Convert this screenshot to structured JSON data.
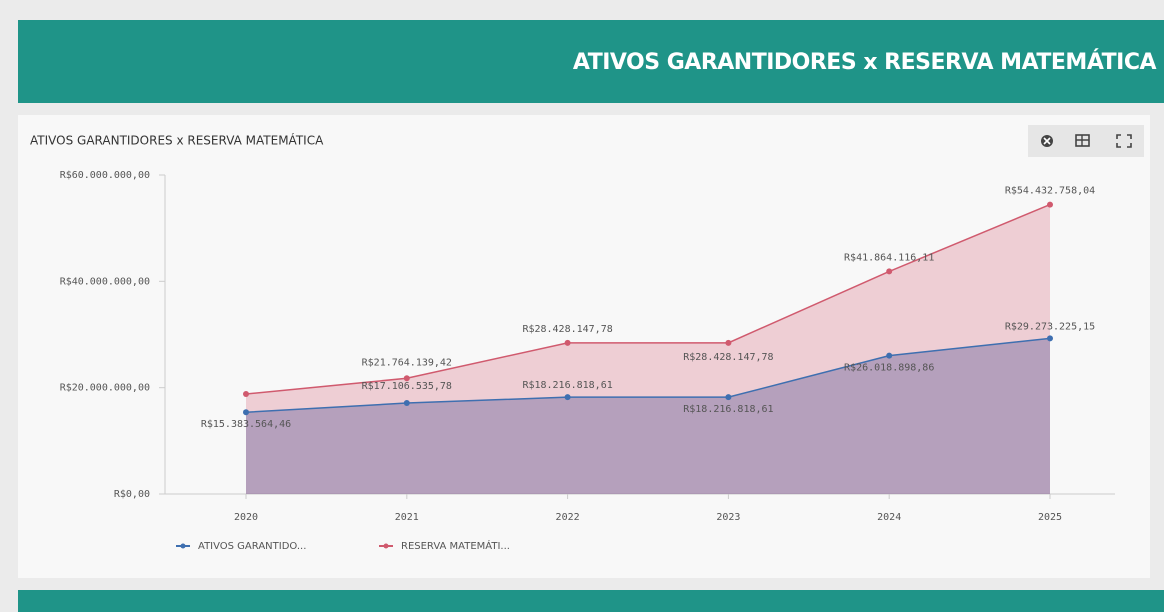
{
  "header": {
    "title": "ATIVOS GARANTIDORES x RESERVA MATEMÁTICA"
  },
  "chart_data": {
    "type": "area",
    "title": "ATIVOS GARANTIDORES x RESERVA MATEMÁTICA",
    "categories": [
      "2020",
      "2021",
      "2022",
      "2023",
      "2024",
      "2025"
    ],
    "series": [
      {
        "name": "ATIVOS GARANTIDO...",
        "color": "#3e6fb0",
        "values": [
          15383564.46,
          17106535.78,
          18216818.61,
          18216818.61,
          26018898.86,
          29273225.15
        ],
        "value_labels": [
          "R$15.383.564,46",
          "R$17.106.535,78",
          "R$18.216.818,61",
          "R$18.216.818,61",
          "R$26.018.898,86",
          "R$29.273.225,15"
        ]
      },
      {
        "name": "RESERVA MATEMÁTI...",
        "color": "#d05a6e",
        "values": [
          18800000,
          21764139.42,
          28428147.78,
          28428147.78,
          41864116.11,
          54432758.04
        ],
        "value_labels": [
          null,
          "R$21.764.139,42",
          "R$28.428.147,78",
          "R$28.428.147,78",
          "R$41.864.116,11",
          "R$54.432.758,04"
        ]
      }
    ],
    "ylim": [
      0,
      60000000
    ],
    "yticks": [
      {
        "value": 0,
        "label": "R$0,00"
      },
      {
        "value": 20000000,
        "label": "R$20.000.000,00"
      },
      {
        "value": 40000000,
        "label": "R$40.000.000,00"
      },
      {
        "value": 60000000,
        "label": "R$60.000.000,00"
      }
    ],
    "legend": "bottom-left"
  }
}
